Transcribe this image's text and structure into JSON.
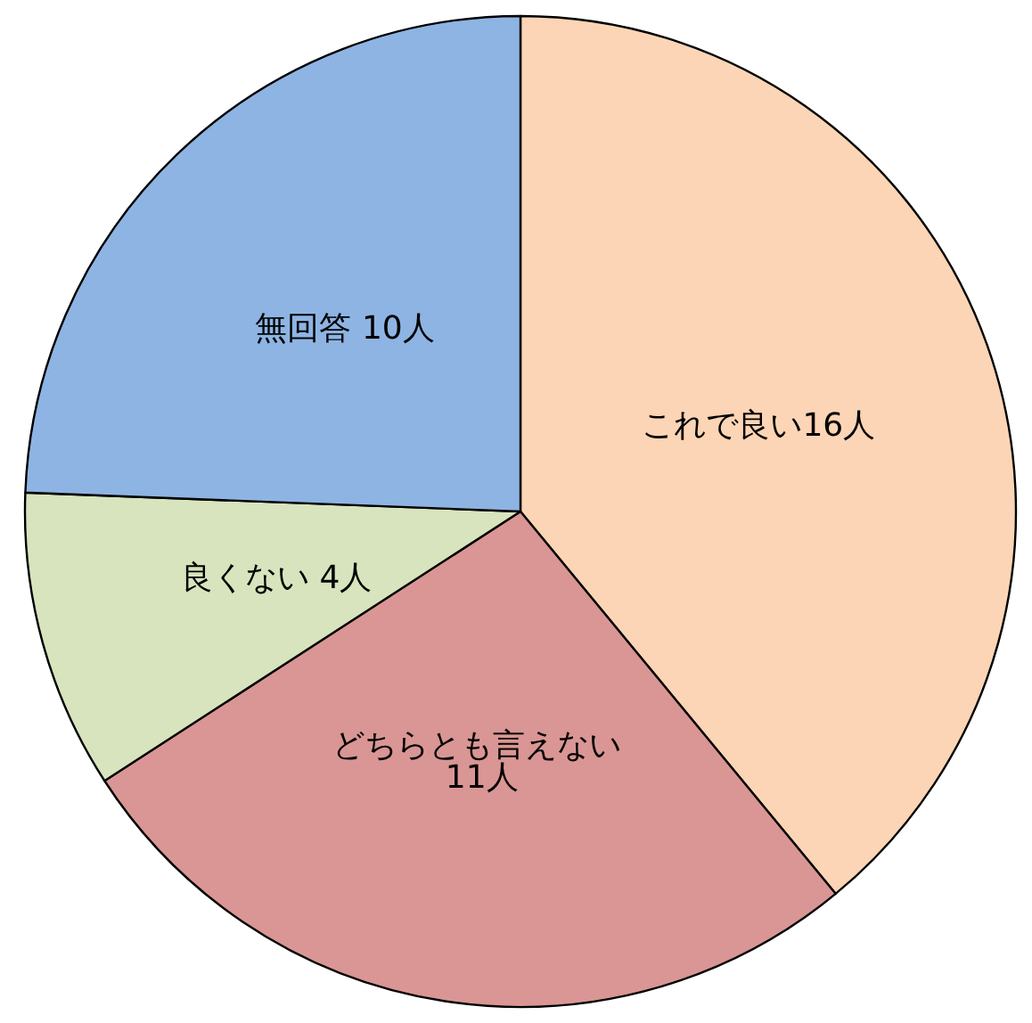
{
  "chart_data": {
    "type": "pie",
    "categories": [
      "これで良い16人",
      "どちらとも言えない 11人",
      "良くない 4人",
      "無回答 10人"
    ],
    "values": [
      16,
      11,
      4,
      10
    ],
    "colors": [
      "#fbd5b5",
      "#d99694",
      "#d7e4bd",
      "#8eb4e3"
    ],
    "legend": false
  }
}
